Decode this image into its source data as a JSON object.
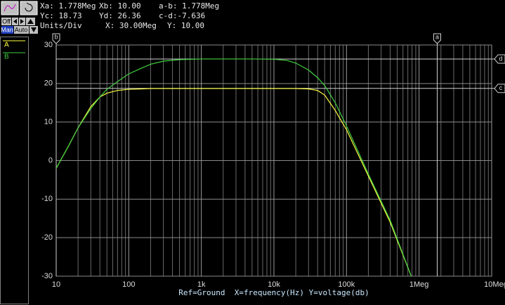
{
  "readout": {
    "rows": [
      [
        "Xa: 1.778Meg",
        "Xb: 10.00",
        "a-b: 1.778Meg"
      ],
      [
        "Yc: 18.73",
        "Yd: 26.36",
        "c-d:-7.636"
      ],
      [
        "Units/Div",
        "X: 30.00Meg",
        "Y: 10.00"
      ]
    ]
  },
  "toolbar": {
    "off": "Off",
    "auto": "Auto",
    "man": "Man"
  },
  "chart_data": {
    "type": "line",
    "xlabel": "Ref=Ground  X=frequency(Hz) Y=voltage(db)",
    "log_x": true,
    "grid": true,
    "xlim": [
      10,
      10000000
    ],
    "xticks": [
      10,
      100,
      {
        "value": 1000,
        "label": "1k"
      },
      {
        "value": 10000,
        "label": "10k"
      },
      {
        "value": 100000,
        "label": "100k"
      },
      {
        "value": 1000000,
        "label": "1Meg"
      },
      {
        "value": 10000000,
        "label": "10Meg"
      }
    ],
    "ylim": [
      -30,
      30
    ],
    "yticks": [
      -30,
      -20,
      -10,
      0,
      10,
      20,
      30
    ],
    "x": [
      10,
      15,
      20,
      30,
      40,
      50,
      70,
      100,
      150,
      200,
      300,
      500,
      1000,
      2000,
      5000,
      10000,
      15000,
      20000,
      30000,
      40000,
      50000,
      70000,
      100000,
      200000,
      400000,
      780000
    ],
    "series": [
      {
        "name": "A",
        "color": "#ffff40",
        "values": [
          -2,
          4,
          8.5,
          14,
          16.5,
          17.5,
          18.2,
          18.5,
          18.6,
          18.7,
          18.7,
          18.7,
          18.7,
          18.7,
          18.7,
          18.7,
          18.7,
          18.7,
          18.6,
          18.2,
          17,
          13,
          8,
          -4,
          -16,
          -30
        ]
      },
      {
        "name": "B",
        "color": "#40d040",
        "values": [
          -2,
          4,
          8.5,
          13.5,
          16.5,
          18.5,
          20.5,
          22.5,
          24,
          25,
          25.8,
          26.2,
          26.36,
          26.36,
          26.36,
          26.3,
          26,
          25.3,
          23.5,
          21.5,
          19.5,
          15,
          9,
          -3.5,
          -15.5,
          -30
        ]
      }
    ],
    "cursors_x": [
      {
        "name": "a",
        "value": 1778000
      },
      {
        "name": "b",
        "value": 10
      }
    ],
    "cursors_y": [
      {
        "name": "c",
        "value": 18.73
      },
      {
        "name": "d",
        "value": 26.36
      }
    ]
  }
}
